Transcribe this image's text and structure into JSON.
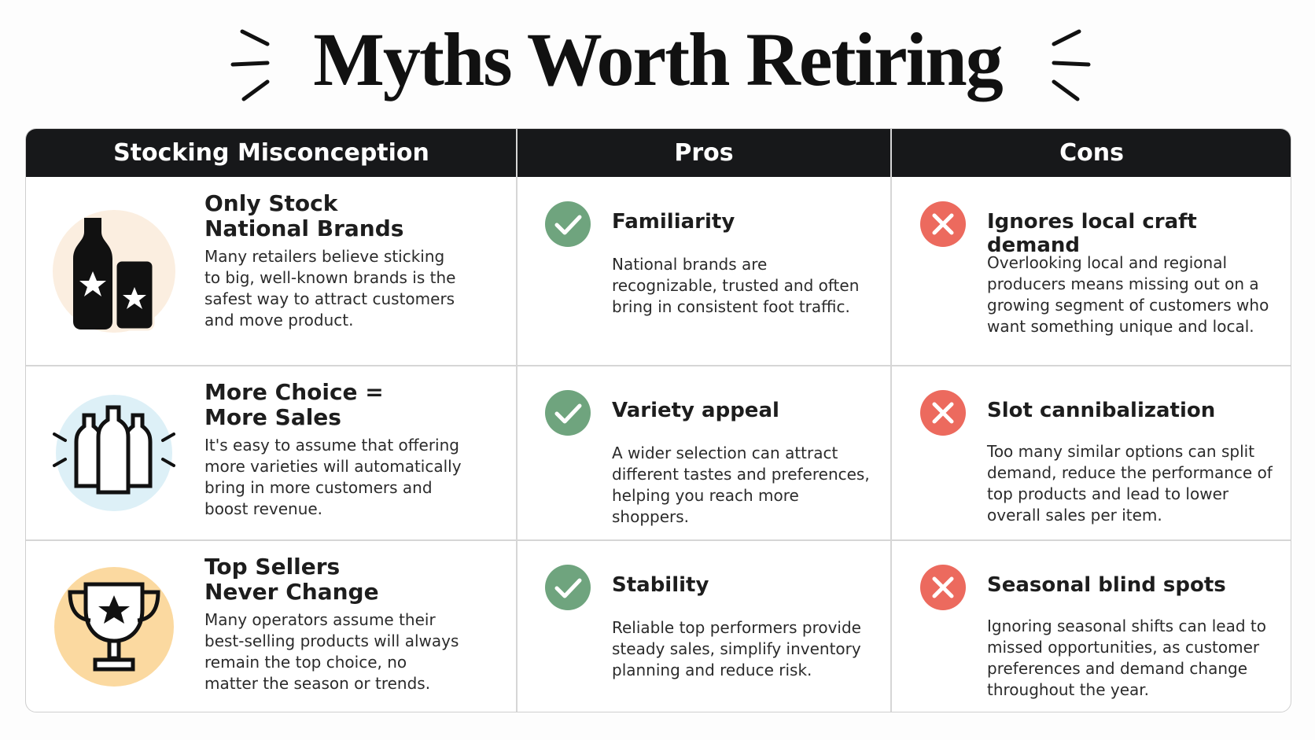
{
  "header": {
    "title": "Myths Worth Retiring"
  },
  "table": {
    "headers": [
      "Stocking Misconception",
      "Pros",
      "Cons"
    ],
    "rows": [
      {
        "myth": {
          "title": "Only Stock National Brands",
          "description": "Many retailers believe sticking to big, well-known brands is the safest way to attract customers and move product."
        },
        "pro": {
          "title": "Familiarity",
          "description": "National brands are recognizable, trusted and often bring in consistent foot traffic."
        },
        "con": {
          "title": "Ignores local craft demand",
          "description": "Overlooking local and regional producers means missing out on a growing segment of customers who want something unique and local."
        }
      },
      {
        "myth": {
          "title": "More Choice = More Sales",
          "description": "It's easy to assume that offering more varieties will automatically bring in more customers and boost revenue."
        },
        "pro": {
          "title": "Variety appeal",
          "description": "A wider selection can attract different tastes and preferences, helping you reach more shoppers."
        },
        "con": {
          "title": "Slot cannibalization",
          "description": "Too many similar options can split demand, reduce the performance of top products and lead to lower overall sales per item."
        }
      },
      {
        "myth": {
          "title": "Top Sellers Never Change",
          "description": "Many operators assume their best-selling products will always remain the top choice, no matter the season or trends."
        },
        "pro": {
          "title": "Stability",
          "description": "Reliable top performers provide steady sales, simplify inventory planning and reduce risk."
        },
        "con": {
          "title": "Seasonal blind spots",
          "description": "Ignoring seasonal shifts can lead to missed opportunities, as customer preferences and demand change throughout the year."
        }
      }
    ]
  }
}
